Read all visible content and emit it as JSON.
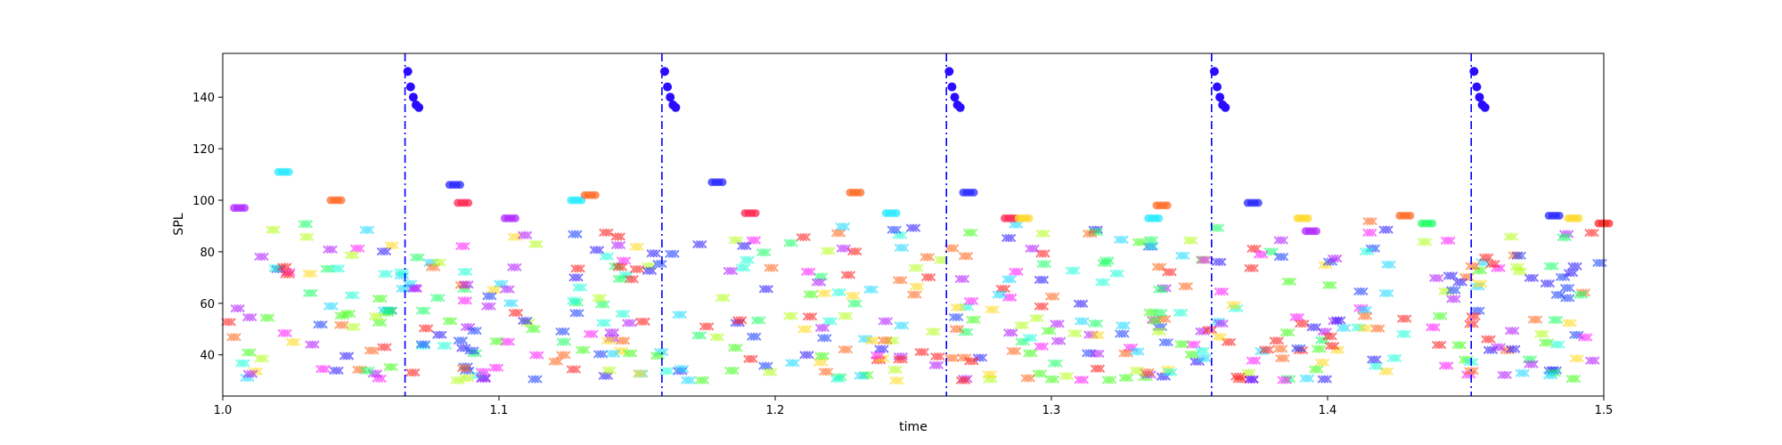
{
  "chart_data": {
    "type": "scatter",
    "title": "",
    "xlabel": "time",
    "ylabel": "SPL",
    "xlim": [
      1.0,
      1.5
    ],
    "ylim": [
      24,
      157
    ],
    "x_ticks": [
      1.0,
      1.1,
      1.2,
      1.3,
      1.4,
      1.5
    ],
    "x_tick_labels": [
      "1.0",
      "1.1",
      "1.2",
      "1.3",
      "1.4",
      "1.5"
    ],
    "y_ticks": [
      40,
      60,
      80,
      100,
      120,
      140
    ],
    "y_tick_labels": [
      "40",
      "60",
      "80",
      "100",
      "120",
      "140"
    ],
    "grid": false,
    "legend": "none",
    "vlines": {
      "x": [
        1.066,
        1.159,
        1.262,
        1.358,
        1.452
      ],
      "color": "#0000ff",
      "style": "dash-dot"
    },
    "onset_markers": {
      "marker": "circle",
      "color": "#2a0cff",
      "groups": [
        {
          "x": [
            1.067,
            1.068,
            1.069,
            1.07,
            1.071
          ],
          "y": [
            150,
            144,
            140,
            137,
            136
          ]
        },
        {
          "x": [
            1.16,
            1.161,
            1.162,
            1.163,
            1.164
          ],
          "y": [
            150,
            144,
            140,
            137,
            136
          ]
        },
        {
          "x": [
            1.263,
            1.264,
            1.265,
            1.266,
            1.267
          ],
          "y": [
            150,
            144,
            140,
            137,
            136
          ]
        },
        {
          "x": [
            1.359,
            1.36,
            1.361,
            1.362,
            1.363
          ],
          "y": [
            150,
            144,
            140,
            137,
            136
          ]
        },
        {
          "x": [
            1.453,
            1.454,
            1.455,
            1.456,
            1.457
          ],
          "y": [
            150,
            144,
            140,
            137,
            136
          ]
        }
      ]
    },
    "circle_notes": [
      {
        "x": 1.006,
        "y": 97,
        "color": "#b026ff"
      },
      {
        "x": 1.022,
        "y": 111,
        "color": "#26e9ff"
      },
      {
        "x": 1.041,
        "y": 100,
        "color": "#ff6a26"
      },
      {
        "x": 1.084,
        "y": 106,
        "color": "#2626ff"
      },
      {
        "x": 1.087,
        "y": 99,
        "color": "#ff2650"
      },
      {
        "x": 1.104,
        "y": 93,
        "color": "#b026ff"
      },
      {
        "x": 1.128,
        "y": 100,
        "color": "#26e9ff"
      },
      {
        "x": 1.133,
        "y": 102,
        "color": "#ff6a26"
      },
      {
        "x": 1.179,
        "y": 107,
        "color": "#2626ff"
      },
      {
        "x": 1.191,
        "y": 95,
        "color": "#ff2650"
      },
      {
        "x": 1.229,
        "y": 103,
        "color": "#ff6a26"
      },
      {
        "x": 1.242,
        "y": 95,
        "color": "#26e9ff"
      },
      {
        "x": 1.27,
        "y": 103,
        "color": "#2626ff"
      },
      {
        "x": 1.285,
        "y": 93,
        "color": "#ff2650"
      },
      {
        "x": 1.29,
        "y": 93,
        "color": "#ffd826"
      },
      {
        "x": 1.337,
        "y": 93,
        "color": "#26e9ff"
      },
      {
        "x": 1.34,
        "y": 98,
        "color": "#ff6a26"
      },
      {
        "x": 1.373,
        "y": 99,
        "color": "#2626ff"
      },
      {
        "x": 1.391,
        "y": 93,
        "color": "#ffd826"
      },
      {
        "x": 1.394,
        "y": 88,
        "color": "#b026ff"
      },
      {
        "x": 1.428,
        "y": 94,
        "color": "#ff6a26"
      },
      {
        "x": 1.436,
        "y": 91,
        "color": "#26ff6a"
      },
      {
        "x": 1.482,
        "y": 94,
        "color": "#2626ff"
      },
      {
        "x": 1.489,
        "y": 93,
        "color": "#ffd826"
      },
      {
        "x": 1.5,
        "y": 91,
        "color": "#ff2626"
      }
    ],
    "x_markers": {
      "marker": "x",
      "note": "dense clusters of x-shaped markers in hues from red through yellow, green, cyan, blue and magenta between SPL 30 and 95 across the full time range"
    }
  }
}
